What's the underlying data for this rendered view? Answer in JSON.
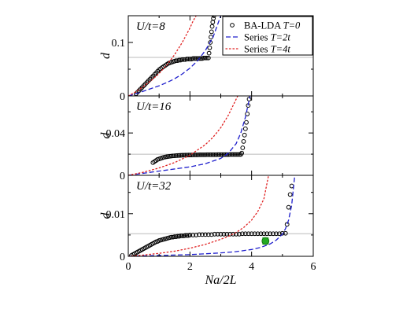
{
  "chart_data": [
    {
      "type": "scatter",
      "panel_label": "U/t=8",
      "ylabel": "d",
      "xlabel": "",
      "xlim": [
        0,
        6
      ],
      "ylim": [
        0,
        0.15
      ],
      "y_ticks": [
        0,
        0.1
      ],
      "y_tick_labels": [
        "0",
        "0.1"
      ],
      "x_ticks": [
        0,
        2,
        4,
        6
      ],
      "x_tick_labels": [],
      "reference_line": 0.072,
      "legend": {
        "position": "top-right",
        "entries": [
          {
            "label": "BA-LDA ",
            "label_italic": "T=0",
            "marker": "circle",
            "color": "#000000"
          },
          {
            "label": "Series ",
            "label_italic": "T=2t",
            "marker": "dashed",
            "color": "#1f1fcc"
          },
          {
            "label": "Series ",
            "label_italic": "T=4t",
            "marker": "dotted",
            "color": "#e02020"
          }
        ]
      },
      "series": [
        {
          "name": "BA-LDA T=0",
          "style": "circles",
          "color": "#000000",
          "x": [
            0.25,
            0.3,
            0.35,
            0.4,
            0.45,
            0.5,
            0.55,
            0.6,
            0.65,
            0.7,
            0.75,
            0.8,
            0.85,
            0.9,
            0.95,
            1.0,
            1.05,
            1.1,
            1.15,
            1.2,
            1.25,
            1.3,
            1.35,
            1.4,
            1.45,
            1.5,
            1.55,
            1.6,
            1.65,
            1.7,
            1.75,
            1.8,
            1.85,
            1.9,
            1.95,
            2.0,
            2.05,
            2.1,
            2.15,
            2.2,
            2.25,
            2.3,
            2.35,
            2.4,
            2.45,
            2.5,
            2.55,
            2.6,
            2.62,
            2.64,
            2.66,
            2.68,
            2.7,
            2.72,
            2.74,
            2.76,
            2.78
          ],
          "y": [
            0.004,
            0.007,
            0.01,
            0.013,
            0.016,
            0.019,
            0.022,
            0.025,
            0.028,
            0.031,
            0.034,
            0.037,
            0.04,
            0.043,
            0.046,
            0.049,
            0.051,
            0.053,
            0.055,
            0.057,
            0.059,
            0.061,
            0.062,
            0.063,
            0.064,
            0.065,
            0.066,
            0.066,
            0.067,
            0.067,
            0.068,
            0.068,
            0.068,
            0.069,
            0.069,
            0.069,
            0.069,
            0.07,
            0.07,
            0.07,
            0.07,
            0.07,
            0.07,
            0.07,
            0.071,
            0.071,
            0.071,
            0.071,
            0.08,
            0.09,
            0.1,
            0.11,
            0.12,
            0.13,
            0.138,
            0.145,
            0.15
          ]
        },
        {
          "name": "Series T=2t",
          "style": "dashed",
          "color": "#1f1fcc",
          "x": [
            0,
            0.25,
            0.5,
            0.75,
            1.0,
            1.25,
            1.5,
            1.75,
            2.0,
            2.25,
            2.5,
            2.75,
            3.0
          ],
          "y": [
            0,
            0.004,
            0.009,
            0.014,
            0.019,
            0.025,
            0.032,
            0.041,
            0.052,
            0.066,
            0.085,
            0.11,
            0.15
          ]
        },
        {
          "name": "Series T=4t",
          "style": "dotted",
          "color": "#e02020",
          "x": [
            0,
            0.25,
            0.5,
            0.75,
            1.0,
            1.25,
            1.5,
            1.75,
            2.0,
            2.1,
            2.2
          ],
          "y": [
            0,
            0.008,
            0.018,
            0.029,
            0.042,
            0.058,
            0.077,
            0.1,
            0.127,
            0.14,
            0.15
          ]
        }
      ]
    },
    {
      "type": "scatter",
      "panel_label": "U/t=16",
      "ylabel": "d",
      "xlabel": "",
      "xlim": [
        0,
        6
      ],
      "ylim": [
        0,
        0.075
      ],
      "y_ticks": [
        0,
        0.04
      ],
      "y_tick_labels": [
        "0",
        "0.04"
      ],
      "x_ticks": [
        0,
        2,
        4,
        6
      ],
      "x_tick_labels": [],
      "reference_line": 0.02,
      "series": [
        {
          "name": "BA-LDA T=0",
          "style": "circles",
          "color": "#000000",
          "x": [
            0.8,
            0.85,
            0.9,
            0.95,
            1.0,
            1.05,
            1.1,
            1.15,
            1.2,
            1.25,
            1.3,
            1.35,
            1.4,
            1.45,
            1.5,
            1.55,
            1.6,
            1.65,
            1.7,
            1.75,
            1.8,
            1.85,
            1.9,
            1.95,
            2.0,
            2.05,
            2.1,
            2.15,
            2.2,
            2.25,
            2.3,
            2.35,
            2.4,
            2.45,
            2.5,
            2.55,
            2.6,
            2.65,
            2.7,
            2.75,
            2.8,
            2.85,
            2.9,
            2.95,
            3.0,
            3.05,
            3.1,
            3.15,
            3.2,
            3.25,
            3.3,
            3.35,
            3.4,
            3.45,
            3.5,
            3.55,
            3.6,
            3.65,
            3.68,
            3.71,
            3.74,
            3.77,
            3.8,
            3.83,
            3.86,
            3.89,
            3.92
          ],
          "y": [
            0.012,
            0.013,
            0.014,
            0.015,
            0.0155,
            0.016,
            0.0165,
            0.017,
            0.0173,
            0.0176,
            0.0178,
            0.018,
            0.0182,
            0.0184,
            0.0185,
            0.0186,
            0.0187,
            0.0188,
            0.0189,
            0.019,
            0.019,
            0.0191,
            0.0191,
            0.0192,
            0.0192,
            0.0192,
            0.0193,
            0.0193,
            0.0193,
            0.0193,
            0.0194,
            0.0194,
            0.0194,
            0.0194,
            0.0194,
            0.0195,
            0.0195,
            0.0195,
            0.0195,
            0.0195,
            0.0195,
            0.0195,
            0.0196,
            0.0196,
            0.0196,
            0.0196,
            0.0196,
            0.0196,
            0.0196,
            0.0196,
            0.0197,
            0.0197,
            0.0197,
            0.0197,
            0.0197,
            0.0197,
            0.0197,
            0.0197,
            0.021,
            0.026,
            0.032,
            0.038,
            0.044,
            0.05,
            0.058,
            0.066,
            0.072
          ]
        },
        {
          "name": "Series T=2t",
          "style": "dashed",
          "color": "#1f1fcc",
          "x": [
            0,
            0.5,
            1.0,
            1.5,
            2.0,
            2.5,
            3.0,
            3.25,
            3.5,
            3.65,
            3.8,
            3.95
          ],
          "y": [
            0,
            0.002,
            0.004,
            0.006,
            0.008,
            0.011,
            0.016,
            0.021,
            0.03,
            0.04,
            0.055,
            0.075
          ]
        },
        {
          "name": "Series T=4t",
          "style": "dotted",
          "color": "#e02020",
          "x": [
            0,
            0.5,
            1.0,
            1.5,
            2.0,
            2.5,
            2.75,
            3.0,
            3.25,
            3.45,
            3.55
          ],
          "y": [
            0,
            0.003,
            0.007,
            0.012,
            0.019,
            0.029,
            0.036,
            0.045,
            0.057,
            0.069,
            0.075
          ]
        }
      ]
    },
    {
      "type": "scatter",
      "panel_label": "U/t=32",
      "ylabel": "d",
      "xlabel": "Na/2L",
      "xlim": [
        0,
        6
      ],
      "ylim": [
        0,
        0.019
      ],
      "y_ticks": [
        0,
        0.01
      ],
      "y_tick_labels": [
        "0",
        "0.01"
      ],
      "x_ticks": [
        0,
        2,
        4,
        6
      ],
      "x_tick_labels": [
        "0",
        "2",
        "4",
        "6"
      ],
      "reference_line": 0.0053,
      "marker_point": {
        "x": 4.45,
        "y": 0.0036,
        "err": 0.0007,
        "color": "#22aa22"
      },
      "series": [
        {
          "name": "BA-LDA T=0",
          "style": "circles",
          "color": "#000000",
          "x": [
            0.1,
            0.15,
            0.2,
            0.25,
            0.3,
            0.35,
            0.4,
            0.45,
            0.5,
            0.55,
            0.6,
            0.65,
            0.7,
            0.75,
            0.8,
            0.85,
            0.9,
            0.95,
            1.0,
            1.05,
            1.1,
            1.15,
            1.2,
            1.25,
            1.3,
            1.35,
            1.4,
            1.45,
            1.5,
            1.55,
            1.6,
            1.65,
            1.7,
            1.75,
            1.8,
            1.85,
            1.9,
            1.95,
            2.0,
            2.1,
            2.2,
            2.3,
            2.4,
            2.5,
            2.6,
            2.7,
            2.8,
            2.9,
            3.0,
            3.1,
            3.2,
            3.3,
            3.4,
            3.5,
            3.6,
            3.7,
            3.8,
            3.9,
            4.0,
            4.1,
            4.2,
            4.3,
            4.4,
            4.5,
            4.6,
            4.7,
            4.8,
            4.9,
            5.0,
            5.1,
            5.15,
            5.2,
            5.25,
            5.3
          ],
          "y": [
            0.0002,
            0.0004,
            0.0006,
            0.0008,
            0.001,
            0.0012,
            0.0014,
            0.0016,
            0.0018,
            0.002,
            0.0022,
            0.0024,
            0.0026,
            0.0028,
            0.003,
            0.0032,
            0.0034,
            0.0035,
            0.0037,
            0.0038,
            0.0039,
            0.004,
            0.0041,
            0.0042,
            0.0043,
            0.0044,
            0.0045,
            0.0045,
            0.0046,
            0.0046,
            0.0047,
            0.0047,
            0.0048,
            0.0048,
            0.0048,
            0.0049,
            0.0049,
            0.0049,
            0.005,
            0.005,
            0.005,
            0.0051,
            0.0051,
            0.0051,
            0.0051,
            0.0051,
            0.0052,
            0.0052,
            0.0052,
            0.0052,
            0.0052,
            0.0052,
            0.0052,
            0.0052,
            0.0052,
            0.0053,
            0.0053,
            0.0053,
            0.0053,
            0.0053,
            0.0053,
            0.0053,
            0.0053,
            0.0053,
            0.0053,
            0.0053,
            0.0053,
            0.0053,
            0.0054,
            0.0054,
            0.0075,
            0.0115,
            0.0145,
            0.0165
          ]
        },
        {
          "name": "Series T=2t",
          "style": "dashed",
          "color": "#1f1fcc",
          "x": [
            0,
            0.5,
            1.0,
            1.5,
            2.0,
            2.5,
            3.0,
            3.5,
            4.0,
            4.3,
            4.6,
            4.8,
            5.0,
            5.1,
            5.2,
            5.3,
            5.4
          ],
          "y": [
            0,
            0.0001,
            0.0002,
            0.0003,
            0.0004,
            0.0006,
            0.0008,
            0.0011,
            0.0016,
            0.0021,
            0.0029,
            0.0038,
            0.0052,
            0.0065,
            0.0085,
            0.012,
            0.019
          ]
        },
        {
          "name": "Series T=4t",
          "style": "dotted",
          "color": "#e02020",
          "x": [
            0,
            0.5,
            1.0,
            1.5,
            2.0,
            2.5,
            3.0,
            3.25,
            3.5,
            3.75,
            4.0,
            4.2,
            4.4,
            4.55
          ],
          "y": [
            0,
            0.0003,
            0.0007,
            0.0012,
            0.0019,
            0.0028,
            0.004,
            0.0047,
            0.0056,
            0.0068,
            0.0085,
            0.0105,
            0.0135,
            0.019
          ]
        }
      ]
    }
  ]
}
